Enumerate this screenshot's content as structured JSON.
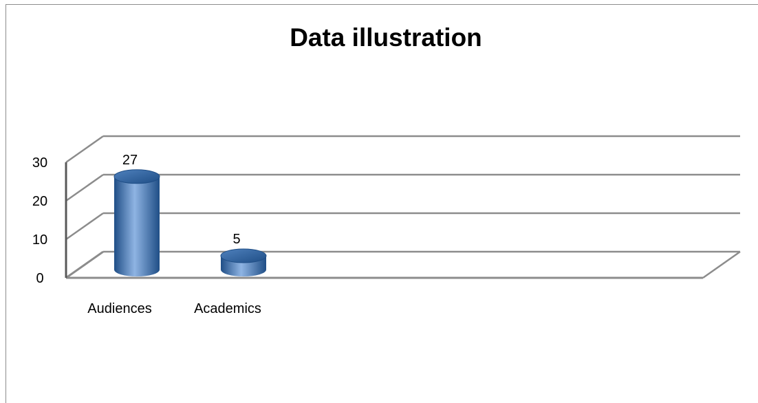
{
  "chart_data": {
    "type": "bar",
    "style": "3d-cylinder",
    "title": "Data illustration",
    "xlabel": "",
    "ylabel": "",
    "categories": [
      "Audiences",
      "Academics"
    ],
    "series": [
      {
        "values": [
          27,
          5
        ],
        "data_labels": [
          "27",
          "5"
        ]
      }
    ],
    "y_ticks": [
      "0",
      "10",
      "20",
      "30"
    ],
    "ylim": [
      0,
      30
    ],
    "grid": true,
    "legend": "none",
    "colors": {
      "bar_dark": "#1f4e86",
      "bar_mid": "#4f81bd",
      "bar_light": "#8fb4e3",
      "gridline": "#8c8c8c",
      "axis": "#595959",
      "text": "#000000"
    }
  }
}
